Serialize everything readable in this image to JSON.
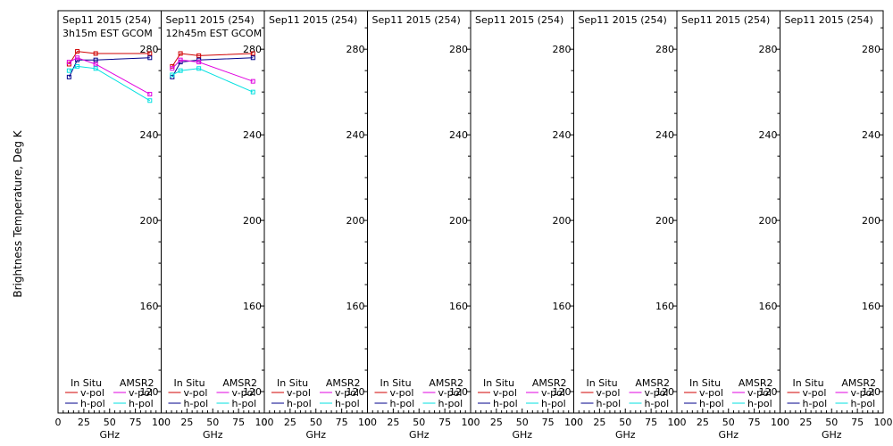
{
  "figure": {
    "ylabel": "Brightness Temperature, Deg K"
  },
  "legend": {
    "insitu_header": "In Situ",
    "amsr2_header": "AMSR2",
    "vpol": "v-pol",
    "hpol": "h-pol"
  },
  "colors": {
    "insitu_v": "#d00000",
    "insitu_h": "#00008b",
    "amsr2_v": "#e000e0",
    "amsr2_h": "#00e0e0",
    "axis": "#000000"
  },
  "chart_data": [
    {
      "type": "line",
      "title": "Sep11 2015 (254)",
      "subtitle": "3h15m EST GCOM",
      "xlabel": "GHz",
      "ylabel": "Brightness Temperature, Deg K",
      "xlim": [
        0,
        100
      ],
      "ylim": [
        110,
        298
      ],
      "xticks": [
        0,
        25,
        50,
        75,
        100
      ],
      "yticks": [
        120,
        160,
        200,
        240,
        280
      ],
      "series": [
        {
          "name": "In Situ v-pol",
          "color_key": "insitu_v",
          "x": [
            10.7,
            18.7,
            36.5,
            89
          ],
          "y": [
            273,
            279,
            278,
            278
          ]
        },
        {
          "name": "In Situ h-pol",
          "color_key": "insitu_h",
          "x": [
            10.7,
            18.7,
            36.5,
            89
          ],
          "y": [
            267,
            275,
            275,
            276
          ]
        },
        {
          "name": "AMSR2 v-pol",
          "color_key": "amsr2_v",
          "x": [
            10.7,
            18.7,
            36.5,
            89
          ],
          "y": [
            274,
            276,
            273,
            259
          ]
        },
        {
          "name": "AMSR2 h-pol",
          "color_key": "amsr2_h",
          "x": [
            10.7,
            18.7,
            36.5,
            89
          ],
          "y": [
            270,
            272,
            271,
            256
          ]
        }
      ]
    },
    {
      "type": "line",
      "title": "Sep11 2015 (254)",
      "subtitle": "12h45m EST GCOM",
      "xlabel": "GHz",
      "ylabel": "",
      "xlim": [
        0,
        100
      ],
      "ylim": [
        110,
        298
      ],
      "xticks": [
        0,
        25,
        50,
        75,
        100
      ],
      "yticks": [
        120,
        160,
        200,
        240,
        280
      ],
      "series": [
        {
          "name": "In Situ v-pol",
          "color_key": "insitu_v",
          "x": [
            10.7,
            18.7,
            36.5,
            89
          ],
          "y": [
            272,
            278,
            277,
            278
          ]
        },
        {
          "name": "In Situ h-pol",
          "color_key": "insitu_h",
          "x": [
            10.7,
            18.7,
            36.5,
            89
          ],
          "y": [
            267,
            274,
            275,
            276
          ]
        },
        {
          "name": "AMSR2 v-pol",
          "color_key": "amsr2_v",
          "x": [
            10.7,
            18.7,
            36.5,
            89
          ],
          "y": [
            271,
            275,
            274,
            265
          ]
        },
        {
          "name": "AMSR2 h-pol",
          "color_key": "amsr2_h",
          "x": [
            10.7,
            18.7,
            36.5,
            89
          ],
          "y": [
            268,
            270,
            271,
            260
          ]
        }
      ]
    },
    {
      "type": "line",
      "title": "Sep11 2015 (254)",
      "subtitle": "",
      "xlabel": "GHz",
      "ylabel": "",
      "xlim": [
        0,
        100
      ],
      "ylim": [
        110,
        298
      ],
      "xticks": [
        0,
        25,
        50,
        75,
        100
      ],
      "yticks": [
        120,
        160,
        200,
        240,
        280
      ],
      "series": []
    },
    {
      "type": "line",
      "title": "Sep11 2015 (254)",
      "subtitle": "",
      "xlabel": "GHz",
      "ylabel": "",
      "xlim": [
        0,
        100
      ],
      "ylim": [
        110,
        298
      ],
      "xticks": [
        0,
        25,
        50,
        75,
        100
      ],
      "yticks": [
        120,
        160,
        200,
        240,
        280
      ],
      "series": []
    },
    {
      "type": "line",
      "title": "Sep11 2015 (254)",
      "subtitle": "",
      "xlabel": "GHz",
      "ylabel": "",
      "xlim": [
        0,
        100
      ],
      "ylim": [
        110,
        298
      ],
      "xticks": [
        0,
        25,
        50,
        75,
        100
      ],
      "yticks": [
        120,
        160,
        200,
        240,
        280
      ],
      "series": []
    },
    {
      "type": "line",
      "title": "Sep11 2015 (254)",
      "subtitle": "",
      "xlabel": "GHz",
      "ylabel": "",
      "xlim": [
        0,
        100
      ],
      "ylim": [
        110,
        298
      ],
      "xticks": [
        0,
        25,
        50,
        75,
        100
      ],
      "yticks": [
        120,
        160,
        200,
        240,
        280
      ],
      "series": []
    },
    {
      "type": "line",
      "title": "Sep11 2015 (254)",
      "subtitle": "",
      "xlabel": "GHz",
      "ylabel": "",
      "xlim": [
        0,
        100
      ],
      "ylim": [
        110,
        298
      ],
      "xticks": [
        0,
        25,
        50,
        75,
        100
      ],
      "yticks": [
        120,
        160,
        200,
        240,
        280
      ],
      "series": []
    },
    {
      "type": "line",
      "title": "Sep11 2015 (254)",
      "subtitle": "",
      "xlabel": "GHz",
      "ylabel": "",
      "xlim": [
        0,
        100
      ],
      "ylim": [
        110,
        298
      ],
      "xticks": [
        0,
        25,
        50,
        75,
        100
      ],
      "yticks": [
        120,
        160,
        200,
        240,
        280
      ],
      "series": []
    }
  ]
}
